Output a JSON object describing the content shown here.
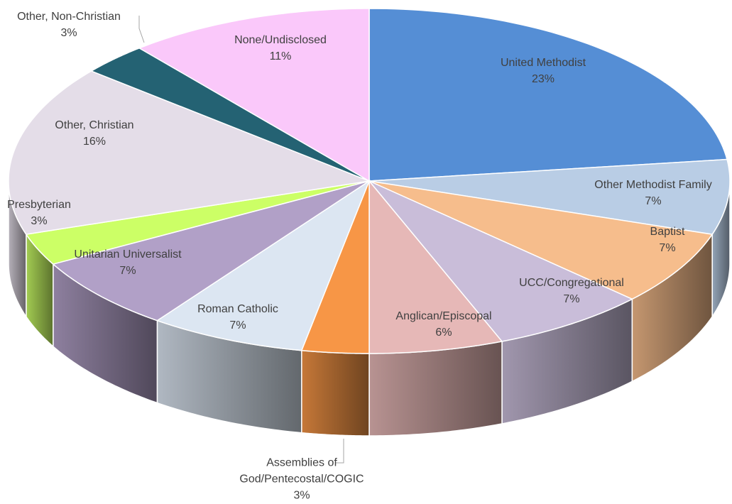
{
  "chart_data": {
    "type": "pie3d",
    "categories": [
      "United Methodist",
      "Other Methodist Family",
      "Baptist",
      "UCC/Congregational",
      "Anglican/Episcopal",
      "Assemblies of God/Pentecostal/COGIC",
      "Roman Catholic",
      "Unitarian Universalist",
      "Presbyterian",
      "Other, Christian",
      "Other, Non-Christian",
      "None/Undisclosed"
    ],
    "values": [
      23,
      7,
      7,
      7,
      6,
      3,
      7,
      7,
      3,
      16,
      3,
      11
    ],
    "value_labels": [
      "23%",
      "7%",
      "7%",
      "7%",
      "6%",
      "3%",
      "7%",
      "7%",
      "3%",
      "16%",
      "3%",
      "11%"
    ],
    "colors": [
      "#558ed5",
      "#b9cde5",
      "#f6bd8c",
      "#c9bdd9",
      "#e6b8b7",
      "#f79646",
      "#dce6f2",
      "#b1a0c7",
      "#ccff66",
      "#e4dde8",
      "#246273",
      "#fac8fa"
    ]
  }
}
